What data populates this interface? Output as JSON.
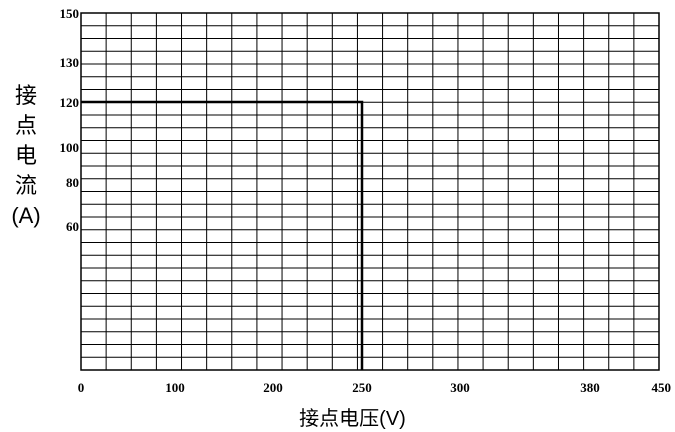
{
  "chart_data": {
    "type": "line",
    "ylabel_chars": [
      "接",
      "点",
      "电",
      "流"
    ],
    "ylabel_unit": "(A)",
    "xlabel_text": "接点电压",
    "xlabel_unit": "(V)",
    "x_ticks": [
      0,
      100,
      200,
      250,
      300,
      380,
      450
    ],
    "y_ticks": [
      60,
      80,
      100,
      120,
      130,
      150
    ],
    "xlim": [
      0,
      450
    ],
    "ylim": [
      0,
      150
    ],
    "grid": true,
    "series": [
      {
        "x": [
          0,
          250,
          250
        ],
        "y": [
          120,
          120,
          0
        ],
        "color": "#000000"
      }
    ]
  }
}
